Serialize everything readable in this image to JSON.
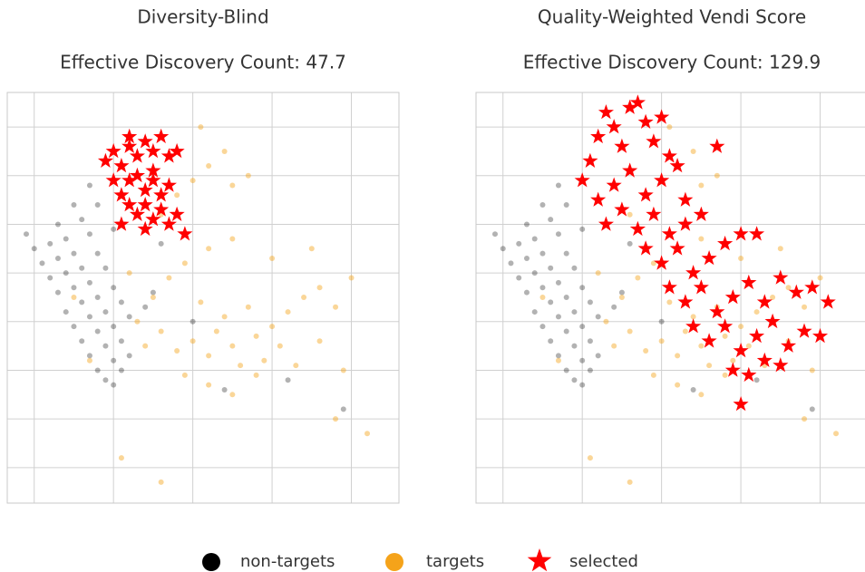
{
  "chart_data": [
    {
      "type": "scatter",
      "title": "Diversity-Blind",
      "subtitle": "Effective Discovery Count: 47.7",
      "xlim": [
        0.66,
        5.6
      ],
      "ylim": [
        0.27,
        8.71
      ],
      "xticks": [
        1,
        2,
        3,
        4,
        5
      ],
      "yticks": [
        1,
        2,
        3,
        4,
        5,
        6,
        7,
        8
      ],
      "grid": true,
      "legend": "lower center",
      "series": [
        {
          "name": "non-targets",
          "color": "#000000",
          "marker": "circle",
          "x": [
            0.9,
            1.0,
            1.1,
            1.2,
            1.3,
            1.4,
            1.5,
            1.6,
            1.7,
            1.8,
            1.9,
            2.0,
            1.2,
            1.3,
            1.4,
            1.5,
            1.6,
            1.7,
            1.8,
            1.9,
            2.0,
            2.1,
            1.3,
            1.4,
            1.5,
            1.6,
            1.7,
            1.8,
            1.9,
            2.0,
            2.1,
            2.2,
            1.5,
            1.6,
            1.7,
            1.8,
            1.9,
            2.0,
            2.1,
            2.2,
            2.4,
            2.5,
            1.7,
            1.8,
            2.0,
            2.6,
            3.0,
            3.4,
            4.2,
            4.9
          ],
          "y": [
            5.8,
            5.5,
            5.2,
            4.9,
            4.6,
            4.2,
            3.9,
            3.6,
            3.3,
            3.0,
            2.8,
            2.7,
            5.6,
            5.3,
            5.0,
            4.7,
            4.4,
            4.1,
            3.8,
            3.5,
            3.2,
            3.0,
            6.0,
            5.7,
            5.4,
            5.1,
            4.8,
            4.5,
            4.2,
            3.9,
            3.6,
            3.3,
            6.4,
            6.1,
            5.8,
            5.4,
            5.1,
            4.7,
            4.4,
            4.1,
            4.3,
            4.6,
            6.8,
            6.4,
            5.9,
            5.6,
            4.0,
            2.6,
            2.8,
            2.2
          ]
        },
        {
          "name": "targets",
          "color": "#f5a31a",
          "marker": "circle",
          "x": [
            2.4,
            2.6,
            2.8,
            3.0,
            3.2,
            3.3,
            3.5,
            3.6,
            3.8,
            4.0,
            4.2,
            4.4,
            4.6,
            4.8,
            5.0,
            3.1,
            3.4,
            3.7,
            3.9,
            4.1,
            2.9,
            3.2,
            3.5,
            3.8,
            4.3,
            4.6,
            4.9,
            2.5,
            2.7,
            2.9,
            3.2,
            3.5,
            4.0,
            4.5,
            2.6,
            2.8,
            3.0,
            3.2,
            3.4,
            3.1,
            3.5,
            3.7,
            2.2,
            2.3,
            1.7,
            1.5,
            4.8,
            5.2,
            2.1,
            2.6
          ],
          "y": [
            3.5,
            3.8,
            3.4,
            3.6,
            3.3,
            3.8,
            3.5,
            3.1,
            3.7,
            3.9,
            4.2,
            4.5,
            4.7,
            4.3,
            4.9,
            4.4,
            4.1,
            4.3,
            3.2,
            3.5,
            2.9,
            2.7,
            2.5,
            2.9,
            3.1,
            3.6,
            3.0,
            4.5,
            4.9,
            5.2,
            5.5,
            5.7,
            5.3,
            5.5,
            6.2,
            6.6,
            6.9,
            7.2,
            7.5,
            8.0,
            6.8,
            7.0,
            5.0,
            4.0,
            3.2,
            4.5,
            2.0,
            1.7,
            1.2,
            0.7
          ]
        },
        {
          "name": "selected",
          "color": "#ff0000",
          "marker": "star",
          "x": [
            1.9,
            2.0,
            2.1,
            2.2,
            2.3,
            2.4,
            2.5,
            2.6,
            2.7,
            2.8,
            2.0,
            2.1,
            2.2,
            2.3,
            2.4,
            2.5,
            2.6,
            2.7,
            2.2,
            2.3,
            2.4,
            2.5,
            2.6,
            2.7,
            2.4,
            2.8,
            2.1,
            2.9,
            2.5,
            2.2
          ],
          "y": [
            7.3,
            7.5,
            7.2,
            7.6,
            7.4,
            7.7,
            7.5,
            7.8,
            7.4,
            7.5,
            6.9,
            6.6,
            6.9,
            7.0,
            6.7,
            6.9,
            6.6,
            6.8,
            6.4,
            6.2,
            6.4,
            6.1,
            6.3,
            6.0,
            5.9,
            6.2,
            6.0,
            5.8,
            7.1,
            7.8
          ]
        }
      ]
    },
    {
      "type": "scatter",
      "title": "Quality-Weighted Vendi Score",
      "subtitle": "Effective Discovery Count: 129.9",
      "xlim": [
        0.66,
        5.6
      ],
      "ylim": [
        0.27,
        8.71
      ],
      "xticks": [
        1,
        2,
        3,
        4,
        5
      ],
      "yticks": [
        1,
        2,
        3,
        4,
        5,
        6,
        7,
        8
      ],
      "grid": true,
      "series": [
        {
          "color": "#000000",
          "marker": "circle",
          "x": [
            0.9,
            1.0,
            1.1,
            1.2,
            1.3,
            1.4,
            1.5,
            1.6,
            1.7,
            1.8,
            1.9,
            2.0,
            1.2,
            1.3,
            1.4,
            1.5,
            1.6,
            1.7,
            1.8,
            1.9,
            2.0,
            2.1,
            1.3,
            1.4,
            1.5,
            1.6,
            1.7,
            1.8,
            1.9,
            2.0,
            2.1,
            2.2,
            1.5,
            1.6,
            1.7,
            1.8,
            1.9,
            2.0,
            2.1,
            2.2,
            2.4,
            2.5,
            1.7,
            1.8,
            2.0,
            2.6,
            3.0,
            3.4,
            4.2,
            4.9
          ],
          "y": [
            5.8,
            5.5,
            5.2,
            4.9,
            4.6,
            4.2,
            3.9,
            3.6,
            3.3,
            3.0,
            2.8,
            2.7,
            5.6,
            5.3,
            5.0,
            4.7,
            4.4,
            4.1,
            3.8,
            3.5,
            3.2,
            3.0,
            6.0,
            5.7,
            5.4,
            5.1,
            4.8,
            4.5,
            4.2,
            3.9,
            3.6,
            3.3,
            6.4,
            6.1,
            5.8,
            5.4,
            5.1,
            4.7,
            4.4,
            4.1,
            4.3,
            4.6,
            6.8,
            6.4,
            5.9,
            5.6,
            4.0,
            2.6,
            2.8,
            2.2
          ]
        },
        {
          "color": "#f5a31a",
          "marker": "circle",
          "x": [
            2.4,
            2.6,
            2.8,
            3.0,
            3.2,
            3.3,
            3.5,
            3.6,
            3.8,
            4.0,
            4.2,
            4.4,
            4.6,
            4.8,
            5.0,
            3.1,
            3.4,
            3.7,
            3.9,
            4.1,
            2.9,
            3.2,
            3.5,
            3.8,
            4.3,
            4.6,
            4.9,
            2.5,
            2.7,
            2.9,
            3.2,
            3.5,
            4.0,
            4.5,
            2.6,
            2.8,
            3.0,
            3.2,
            3.4,
            3.1,
            3.5,
            3.7,
            2.2,
            2.3,
            1.7,
            1.5,
            4.8,
            5.2,
            2.1,
            2.6
          ],
          "y": [
            3.5,
            3.8,
            3.4,
            3.6,
            3.3,
            3.8,
            3.5,
            3.1,
            3.7,
            3.9,
            4.2,
            4.5,
            4.7,
            4.3,
            4.9,
            4.4,
            4.1,
            4.3,
            3.2,
            3.5,
            2.9,
            2.7,
            2.5,
            2.9,
            3.1,
            3.6,
            3.0,
            4.5,
            4.9,
            5.2,
            5.5,
            5.7,
            5.3,
            5.5,
            6.2,
            6.6,
            6.9,
            7.2,
            7.5,
            8.0,
            6.8,
            7.0,
            5.0,
            4.0,
            3.2,
            4.5,
            2.0,
            1.7,
            1.2,
            0.7
          ]
        },
        {
          "color": "#ff0000",
          "marker": "star",
          "x": [
            2.0,
            2.1,
            2.2,
            2.3,
            2.4,
            2.5,
            2.6,
            2.7,
            2.8,
            2.9,
            3.0,
            3.1,
            2.2,
            2.4,
            2.6,
            2.8,
            3.0,
            3.2,
            3.3,
            2.3,
            2.5,
            2.7,
            2.9,
            3.1,
            3.3,
            3.5,
            3.7,
            2.8,
            3.0,
            3.2,
            3.4,
            3.6,
            3.8,
            4.0,
            4.2,
            3.1,
            3.3,
            3.5,
            3.7,
            3.9,
            4.1,
            4.3,
            4.5,
            4.7,
            4.9,
            5.1,
            3.4,
            3.6,
            3.8,
            4.0,
            4.2,
            4.4,
            4.6,
            4.8,
            5.0,
            3.9,
            4.1,
            4.3,
            4.0,
            4.5
          ],
          "y": [
            6.9,
            7.3,
            7.8,
            8.3,
            8.0,
            7.6,
            8.4,
            8.5,
            8.1,
            7.7,
            8.2,
            7.4,
            6.5,
            6.8,
            7.1,
            6.6,
            6.9,
            7.2,
            6.5,
            6.0,
            6.3,
            5.9,
            6.2,
            5.8,
            6.0,
            6.2,
            7.6,
            5.5,
            5.2,
            5.5,
            5.0,
            5.3,
            5.6,
            5.8,
            5.8,
            4.7,
            4.4,
            4.7,
            4.2,
            4.5,
            4.8,
            4.4,
            4.9,
            4.6,
            4.7,
            4.4,
            3.9,
            3.6,
            3.9,
            3.4,
            3.7,
            4.0,
            3.5,
            3.8,
            3.7,
            3.0,
            2.9,
            3.2,
            2.3,
            3.1
          ]
        }
      ]
    }
  ]
}
